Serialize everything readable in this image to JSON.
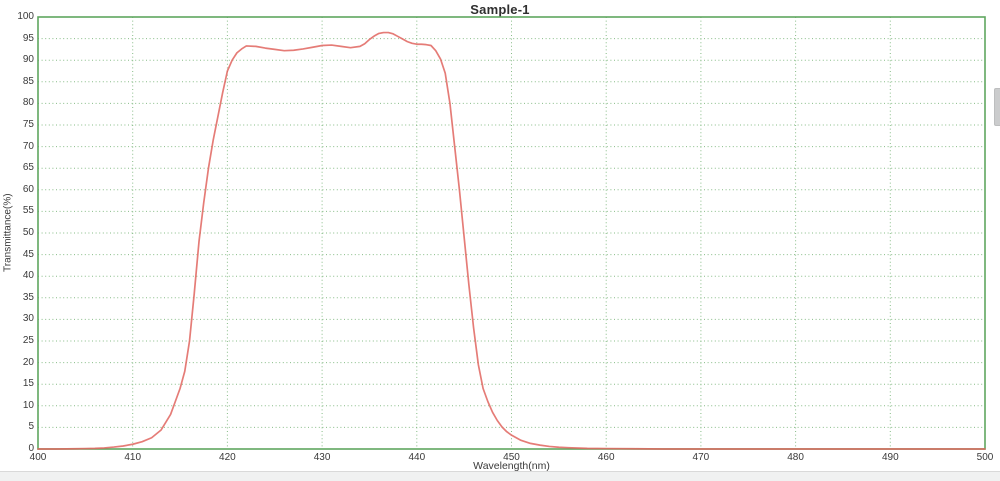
{
  "chart_data": {
    "type": "line",
    "title": "Sample-1",
    "xlabel": "Wavelength(nm)",
    "ylabel": "Transmittance(%)",
    "xlim": [
      400,
      500
    ],
    "ylim": [
      0,
      100
    ],
    "x_ticks": [
      400,
      410,
      420,
      430,
      440,
      450,
      460,
      470,
      480,
      490,
      500
    ],
    "y_ticks": [
      0,
      5,
      10,
      15,
      20,
      25,
      30,
      35,
      40,
      45,
      50,
      55,
      60,
      65,
      70,
      75,
      80,
      85,
      90,
      95,
      100
    ],
    "grid": "dotted",
    "legend": "none",
    "colors": {
      "plot_border": "#5fa75f",
      "grid_line": "#87bc87",
      "curve": "#e0655f",
      "tick_text": "#3a3a3a",
      "title_text": "#2f2f2f"
    },
    "series": [
      {
        "name": "Sample-1 transmittance",
        "color": "#e0655f",
        "points": [
          [
            400,
            0
          ],
          [
            402,
            0
          ],
          [
            404,
            0.05
          ],
          [
            405,
            0.1
          ],
          [
            406,
            0.15
          ],
          [
            407,
            0.25
          ],
          [
            408,
            0.45
          ],
          [
            409,
            0.7
          ],
          [
            410,
            1.1
          ],
          [
            411,
            1.7
          ],
          [
            412,
            2.6
          ],
          [
            413,
            4.4
          ],
          [
            414,
            8
          ],
          [
            414.5,
            11
          ],
          [
            415,
            14
          ],
          [
            415.5,
            18
          ],
          [
            416,
            25
          ],
          [
            416.5,
            36
          ],
          [
            417,
            48
          ],
          [
            417.5,
            57
          ],
          [
            418,
            65
          ],
          [
            418.5,
            71.5
          ],
          [
            419,
            77
          ],
          [
            419.5,
            82.5
          ],
          [
            420,
            87.5
          ],
          [
            420.5,
            90
          ],
          [
            421,
            91.7
          ],
          [
            421.5,
            92.6
          ],
          [
            422,
            93.3
          ],
          [
            423,
            93.2
          ],
          [
            424,
            92.8
          ],
          [
            425,
            92.5
          ],
          [
            426,
            92.2
          ],
          [
            427,
            92.3
          ],
          [
            428,
            92.6
          ],
          [
            429,
            93.0
          ],
          [
            430,
            93.4
          ],
          [
            431,
            93.5
          ],
          [
            432,
            93.2
          ],
          [
            433,
            92.9
          ],
          [
            434,
            93.2
          ],
          [
            434.5,
            93.8
          ],
          [
            435,
            94.8
          ],
          [
            435.5,
            95.6
          ],
          [
            436,
            96.2
          ],
          [
            436.5,
            96.4
          ],
          [
            437,
            96.4
          ],
          [
            437.5,
            96.1
          ],
          [
            438,
            95.5
          ],
          [
            438.5,
            94.9
          ],
          [
            439,
            94.3
          ],
          [
            439.5,
            93.9
          ],
          [
            440,
            93.7
          ],
          [
            440.5,
            93.7
          ],
          [
            441,
            93.6
          ],
          [
            441.5,
            93.4
          ],
          [
            442,
            92.2
          ],
          [
            442.5,
            90.3
          ],
          [
            443,
            87
          ],
          [
            443.5,
            80
          ],
          [
            444,
            70
          ],
          [
            444.5,
            60
          ],
          [
            445,
            49
          ],
          [
            445.5,
            38
          ],
          [
            446,
            28
          ],
          [
            446.5,
            19.5
          ],
          [
            447,
            14
          ],
          [
            447.5,
            11
          ],
          [
            448,
            8.5
          ],
          [
            448.5,
            6.6
          ],
          [
            449,
            5.1
          ],
          [
            449.5,
            4
          ],
          [
            450,
            3.2
          ],
          [
            451,
            2
          ],
          [
            452,
            1.3
          ],
          [
            453,
            0.9
          ],
          [
            454,
            0.6
          ],
          [
            455,
            0.4
          ],
          [
            456,
            0.3
          ],
          [
            458,
            0.15
          ],
          [
            460,
            0.1
          ],
          [
            463,
            0.05
          ],
          [
            466,
            0
          ],
          [
            470,
            0
          ],
          [
            475,
            0
          ],
          [
            480,
            0
          ],
          [
            485,
            0
          ],
          [
            490,
            0
          ],
          [
            495,
            0
          ],
          [
            500,
            0
          ]
        ]
      }
    ]
  }
}
